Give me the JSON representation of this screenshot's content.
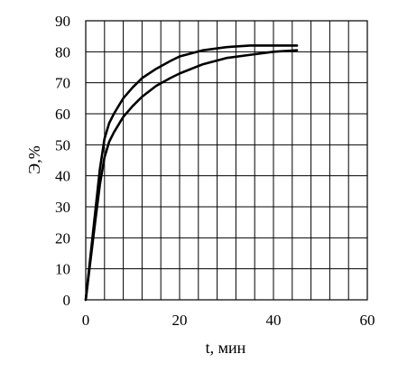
{
  "chart_data": {
    "type": "line",
    "title": "",
    "xlabel": "t, мин",
    "ylabel": "Э,%",
    "xlim": [
      0,
      60
    ],
    "ylim": [
      0,
      90
    ],
    "x_ticks": [
      0,
      20,
      40,
      60
    ],
    "y_ticks": [
      0,
      10,
      20,
      30,
      40,
      50,
      60,
      70,
      80,
      90
    ],
    "x_grid_step": 4,
    "y_grid_step": 10,
    "grid": true,
    "legend": "none",
    "line_color": "#000000",
    "series": [
      {
        "x": [
          0,
          2,
          3,
          4,
          5,
          6,
          8,
          10,
          12,
          15,
          18,
          20,
          25,
          30,
          35,
          40,
          45
        ],
        "y": [
          0,
          28,
          42,
          52,
          57,
          60,
          65,
          68.5,
          71.5,
          74.5,
          77,
          78.5,
          80.5,
          81.5,
          82,
          82,
          82
        ]
      },
      {
        "x": [
          0,
          2,
          3,
          4,
          5,
          6,
          8,
          10,
          12,
          15,
          18,
          20,
          25,
          30,
          35,
          40,
          45
        ],
        "y": [
          0,
          25,
          37,
          46,
          51,
          54,
          59,
          62.5,
          65.5,
          69,
          71.5,
          73,
          76,
          78,
          79,
          80,
          80.5
        ]
      }
    ]
  }
}
